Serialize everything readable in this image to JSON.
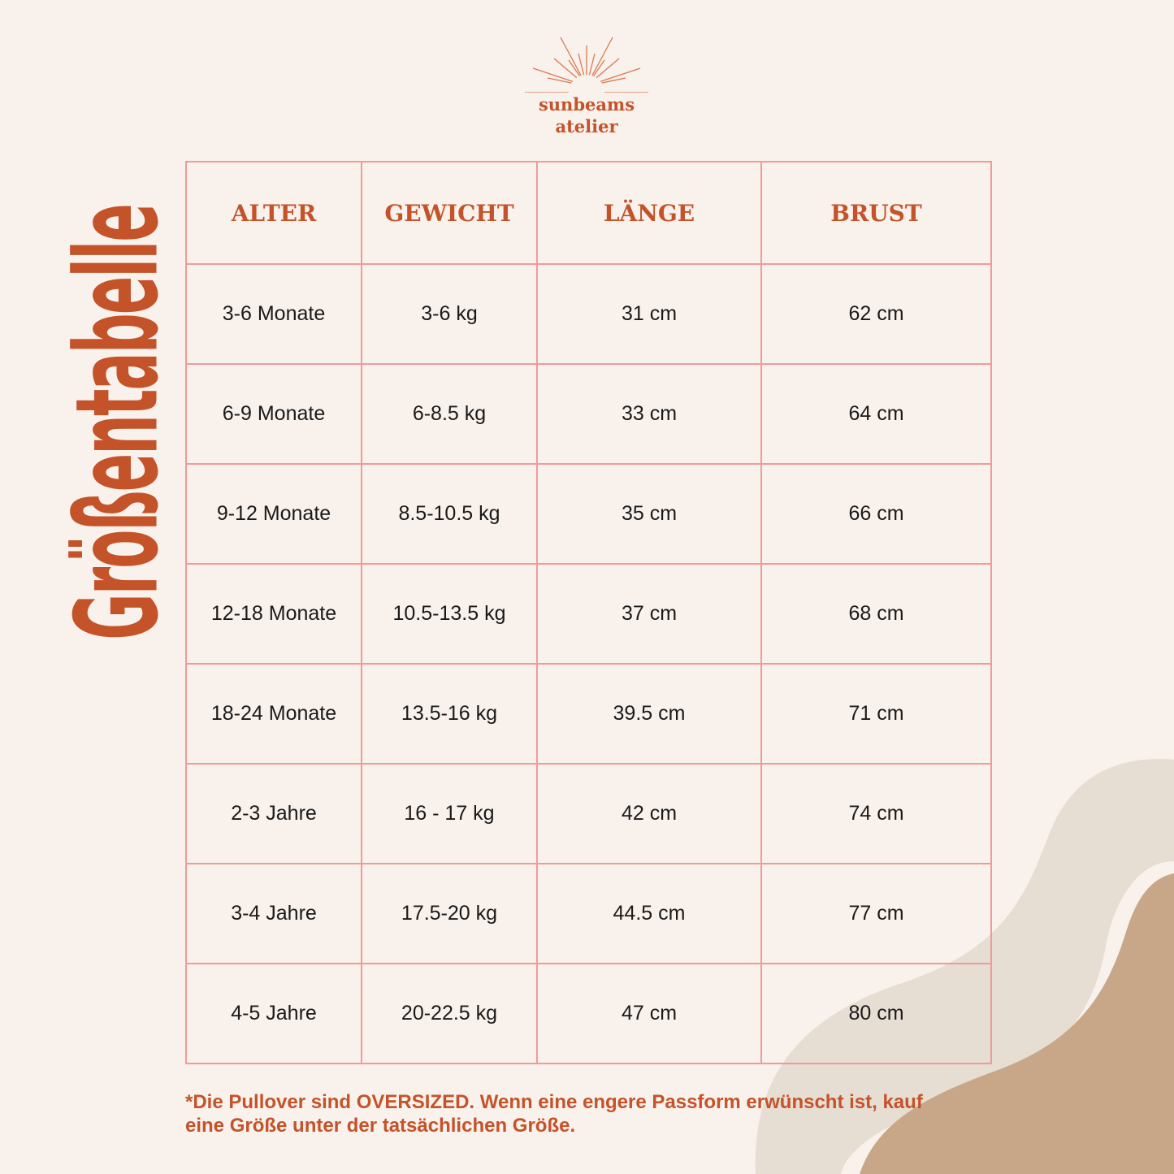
{
  "brand": {
    "line1": "sunbeams",
    "line2": "atelier"
  },
  "title": "Größentabelle",
  "colors": {
    "accent": "#c4532a",
    "border": "#f29a98",
    "background": "#f9f1eb",
    "wave_light": "#e6ddd3",
    "wave_dark": "#c8a789"
  },
  "table": {
    "headers": [
      "ALTER",
      "GEWICHT",
      "LÄNGE",
      "BRUST"
    ],
    "rows": [
      [
        "3-6 Monate",
        "3-6 kg",
        "31 cm",
        "62 cm"
      ],
      [
        "6-9 Monate",
        "6-8.5 kg",
        "33 cm",
        "64 cm"
      ],
      [
        "9-12 Monate",
        "8.5-10.5 kg",
        "35 cm",
        "66 cm"
      ],
      [
        "12-18 Monate",
        "10.5-13.5 kg",
        "37 cm",
        "68 cm"
      ],
      [
        "18-24 Monate",
        "13.5-16 kg",
        "39.5 cm",
        "71 cm"
      ],
      [
        "2-3 Jahre",
        "16 - 17 kg",
        "42 cm",
        "74 cm"
      ],
      [
        "3-4 Jahre",
        "17.5-20 kg",
        "44.5 cm",
        "77 cm"
      ],
      [
        "4-5 Jahre",
        "20-22.5 kg",
        "47 cm",
        "80 cm"
      ]
    ]
  },
  "note": "*Die Pullover sind OVERSIZED. Wenn eine engere Passform erwünscht ist, kauf eine Größe unter der tatsächlichen Größe."
}
